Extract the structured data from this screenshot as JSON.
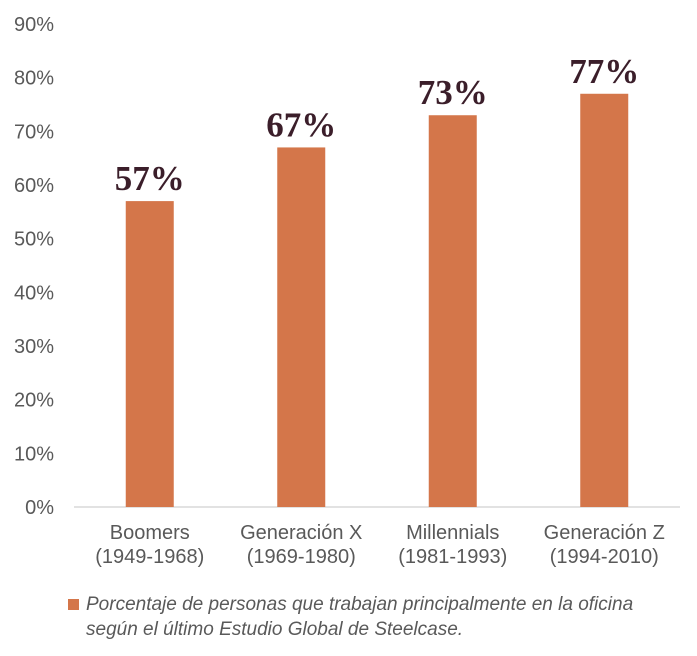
{
  "chart_data": {
    "type": "bar",
    "categories": [
      [
        "Boomers",
        "(1949-1968)"
      ],
      [
        "Generación X",
        "(1969-1980)"
      ],
      [
        "Millennials",
        "(1981-1993)"
      ],
      [
        "Generación Z",
        "(1994-2010)"
      ]
    ],
    "values": [
      57,
      67,
      73,
      77
    ],
    "data_labels": [
      "57%",
      "67%",
      "73%",
      "77%"
    ],
    "ylim": [
      0,
      90
    ],
    "yticks": [
      0,
      10,
      20,
      30,
      40,
      50,
      60,
      70,
      80,
      90
    ],
    "ytick_labels": [
      "0%",
      "10%",
      "20%",
      "30%",
      "40%",
      "50%",
      "60%",
      "70%",
      "80%",
      "90%"
    ],
    "grid": false,
    "bar_color": "#d4764a",
    "axis_color": "#d9d9d9",
    "series": [
      {
        "name": "Porcentaje de personas que trabajan principalmente en la oficina según el último Estudio Global de Steelcase.",
        "values": [
          57,
          67,
          73,
          77
        ]
      }
    ],
    "legend_position": "bottom"
  }
}
